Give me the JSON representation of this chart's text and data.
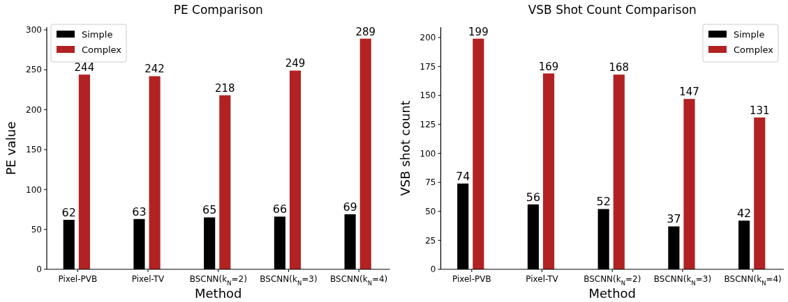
{
  "chart_data": [
    {
      "type": "bar",
      "title": "PE Comparison",
      "xlabel": "Method",
      "ylabel": "PE value",
      "categories": [
        "Pixel-PVB",
        "Pixel-TV",
        "BSCNN(k$_{N}$=2)",
        "BSCNN(k$_{N}$=3)",
        "BSCNN(k$_{N}$=4)"
      ],
      "series": [
        {
          "name": "Simple",
          "color": "#000000",
          "values": [
            62,
            63,
            65,
            66,
            69
          ]
        },
        {
          "name": "Complex",
          "color": "#b22222",
          "values": [
            244,
            242,
            218,
            249,
            289
          ]
        }
      ],
      "ylim": [
        0,
        303.45
      ],
      "yticks": [
        0,
        50,
        100,
        150,
        200,
        250,
        300
      ],
      "data_labels": true,
      "legend": "top left",
      "grid": false
    },
    {
      "type": "bar",
      "title": "VSB Shot Count Comparison",
      "xlabel": "Method",
      "ylabel": "VSB shot count",
      "categories": [
        "Pixel-PVB",
        "Pixel-TV",
        "BSCNN(k$_{N}$=2)",
        "BSCNN(k$_{N}$=3)",
        "BSCNN(k$_{N}$=4)"
      ],
      "series": [
        {
          "name": "Simple",
          "color": "#000000",
          "values": [
            74,
            56,
            52,
            37,
            42
          ]
        },
        {
          "name": "Complex",
          "color": "#b22222",
          "values": [
            199,
            169,
            168,
            147,
            131
          ]
        }
      ],
      "ylim": [
        0,
        208.95
      ],
      "yticks": [
        0,
        25,
        50,
        75,
        100,
        125,
        150,
        175,
        200
      ],
      "data_labels": true,
      "legend": "top right",
      "grid": false
    }
  ]
}
